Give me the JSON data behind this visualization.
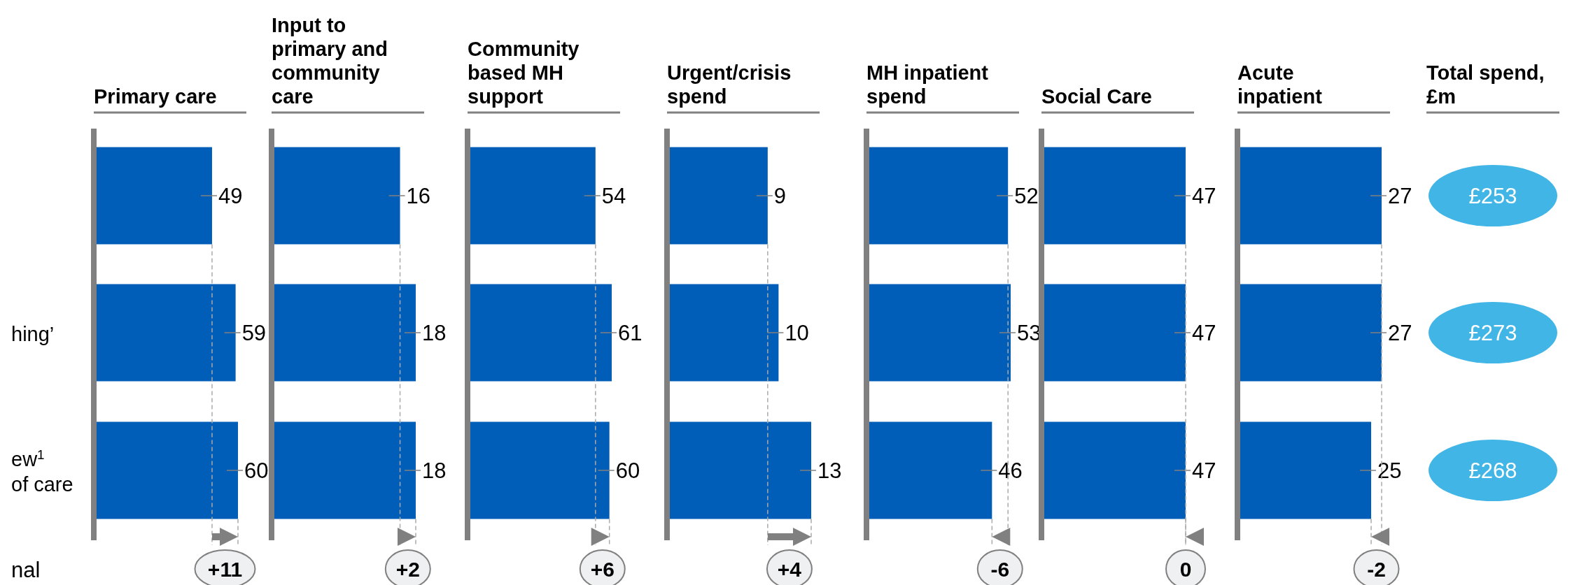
{
  "chart_data": [
    {
      "type": "bar",
      "orientation": "horizontal",
      "title": "Primary care",
      "categories": [
        null,
        "hing’",
        "ew$^{1}$ of care"
      ],
      "values": [
        49,
        59,
        60
      ],
      "color": "#005eb8",
      "data_labels": true,
      "annotations": [
        "+11",
        "nal"
      ]
    },
    {
      "type": "bar",
      "orientation": "horizontal",
      "title": "Input to primary and community care",
      "categories": [
        null,
        null,
        null
      ],
      "values": [
        16,
        18,
        18
      ],
      "color": "#005eb8",
      "data_labels": true,
      "annotations": [
        "+2"
      ]
    },
    {
      "type": "bar",
      "orientation": "horizontal",
      "title": "Community based MH support",
      "categories": [
        null,
        null,
        null
      ],
      "values": [
        54,
        61,
        60
      ],
      "color": "#005eb8",
      "data_labels": true,
      "annotations": [
        "+6"
      ]
    },
    {
      "type": "bar",
      "orientation": "horizontal",
      "title": "Urgent/crisis spend",
      "categories": [
        null,
        null,
        null
      ],
      "values": [
        9,
        10,
        13
      ],
      "color": "#005eb8",
      "data_labels": true,
      "annotations": [
        "+4"
      ]
    },
    {
      "type": "bar",
      "orientation": "horizontal",
      "title": "MH inpatient spend",
      "categories": [
        null,
        null,
        null
      ],
      "values": [
        52,
        53,
        46
      ],
      "color": "#005eb8",
      "data_labels": true,
      "annotations": [
        "-6"
      ]
    },
    {
      "type": "bar",
      "orientation": "horizontal",
      "title": "Social Care",
      "categories": [
        null,
        null,
        null
      ],
      "values": [
        47,
        47,
        47
      ],
      "color": "#005eb8",
      "data_labels": true,
      "annotations": [
        "0"
      ]
    },
    {
      "type": "bar",
      "orientation": "horizontal",
      "title": "Acute inpatient",
      "categories": [
        null,
        null,
        null
      ],
      "values": [
        27,
        27,
        25
      ],
      "color": "#005eb8",
      "data_labels": true,
      "annotations": [
        "-2"
      ]
    },
    {
      "type": "other",
      "title": "Total spend, £m",
      "color": "#41b6e6",
      "annotations": [
        "£253",
        "£273",
        "£268"
      ]
    }
  ]
}
